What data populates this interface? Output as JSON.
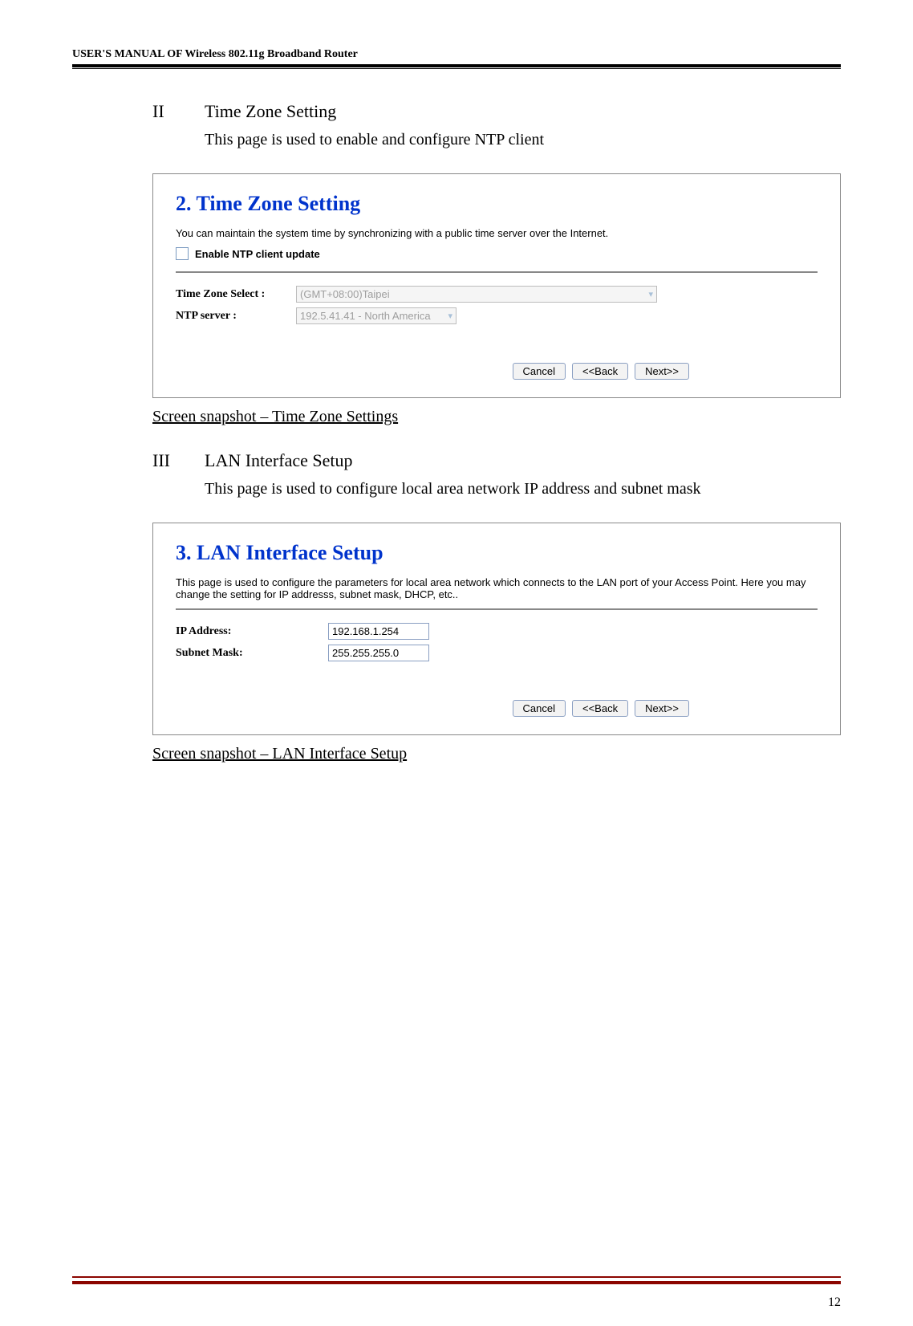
{
  "header": {
    "title": "USER'S MANUAL OF Wireless 802.11g Broadband Router"
  },
  "section2": {
    "numeral": "II",
    "title": "Time Zone Setting",
    "text": "This page is used to enable and configure NTP client"
  },
  "panel2": {
    "heading": "2. Time Zone Setting",
    "desc": "You can maintain the system time by synchronizing with a public time server over the Internet.",
    "checkbox_label": "Enable NTP client update",
    "tz_label": "Time Zone Select :",
    "tz_value": "(GMT+08:00)Taipei",
    "ntp_label": "NTP server :",
    "ntp_value": "192.5.41.41 - North America",
    "btn_cancel": "Cancel",
    "btn_back": "<<Back",
    "btn_next": "Next>>"
  },
  "caption2": "Screen snapshot – Time Zone Settings",
  "section3": {
    "numeral": "III",
    "title": "LAN Interface Setup",
    "text": "This page is used to configure local area network IP address and subnet mask"
  },
  "panel3": {
    "heading": "3. LAN Interface Setup",
    "desc": "This page is used to configure the parameters for local area network which connects to the LAN port of your Access Point. Here you may change the setting for IP addresss, subnet mask, DHCP, etc..",
    "ip_label": "IP Address:",
    "ip_value": "192.168.1.254",
    "mask_label": "Subnet Mask:",
    "mask_value": "255.255.255.0",
    "btn_cancel": "Cancel",
    "btn_back": "<<Back",
    "btn_next": "Next>>"
  },
  "caption3": "Screen snapshot – LAN Interface Setup",
  "page_number": "12"
}
